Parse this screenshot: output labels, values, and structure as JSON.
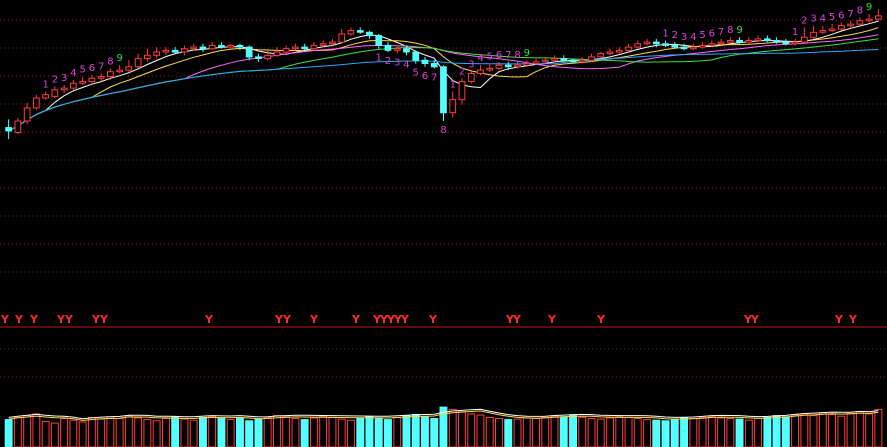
{
  "colors": {
    "background": "#000000",
    "up": "#ff3c3c",
    "down": "#54ffff",
    "grid": "#8a1a1a",
    "signal_line": "#c01818",
    "seq_label": "#e040e0",
    "seq_label_final": "#30e030",
    "y_marker": "#ff2a2a",
    "ma": [
      "#ffffff",
      "#ffd94a",
      "#ff66ff",
      "#3ce03c",
      "#2aa8ff"
    ]
  },
  "chart_data": {
    "type": "candlestick",
    "price_ylim": [
      0,
      100
    ],
    "volume_ylim": [
      0,
      100
    ],
    "grid": true,
    "series": [
      {
        "name": "",
        "kind": "ohlc",
        "ohlc": [
          [
            38,
            36,
            43,
            31
          ],
          [
            35,
            42,
            44,
            34
          ],
          [
            42,
            50,
            53,
            40
          ],
          [
            50,
            56,
            58,
            49
          ],
          [
            56,
            58,
            60,
            55
          ],
          [
            57,
            61,
            63,
            56
          ],
          [
            61,
            62,
            64,
            59
          ],
          [
            62,
            65,
            67,
            61
          ],
          [
            65,
            66,
            69,
            64
          ],
          [
            66,
            68,
            70,
            65
          ],
          [
            68,
            69,
            71,
            66
          ],
          [
            69,
            72,
            74,
            67
          ],
          [
            72,
            73,
            76,
            71
          ],
          [
            73,
            75,
            79,
            72
          ],
          [
            75,
            80,
            83,
            74
          ],
          [
            80,
            82,
            86,
            78
          ],
          [
            82,
            84,
            87,
            80
          ],
          [
            84,
            85,
            87,
            82
          ],
          [
            85,
            84,
            87,
            83
          ],
          [
            84,
            86,
            88,
            82
          ],
          [
            86,
            87,
            89,
            85
          ],
          [
            87,
            86,
            89,
            84
          ],
          [
            86,
            88,
            90,
            85
          ],
          [
            88,
            87,
            90,
            86
          ],
          [
            87,
            88,
            89,
            86
          ],
          [
            88,
            87,
            89,
            85
          ],
          [
            87,
            81,
            88,
            79
          ],
          [
            81,
            80,
            83,
            78
          ],
          [
            80,
            82,
            85,
            79
          ],
          [
            82,
            84,
            87,
            81
          ],
          [
            84,
            86,
            88,
            83
          ],
          [
            86,
            87,
            89,
            85
          ],
          [
            87,
            86,
            89,
            84
          ],
          [
            86,
            88,
            90,
            85
          ],
          [
            88,
            89,
            91,
            87
          ],
          [
            89,
            90,
            92,
            88
          ],
          [
            90,
            95,
            98,
            89
          ],
          [
            95,
            97,
            99,
            94
          ],
          [
            97,
            96,
            99,
            95
          ],
          [
            96,
            94,
            97,
            92
          ],
          [
            94,
            88,
            95,
            86
          ],
          [
            88,
            85,
            90,
            84
          ],
          [
            85,
            86,
            88,
            83
          ],
          [
            86,
            84,
            88,
            82
          ],
          [
            84,
            79,
            85,
            77
          ],
          [
            79,
            77,
            81,
            75
          ],
          [
            77,
            75,
            79,
            74
          ],
          [
            75,
            47,
            76,
            42
          ],
          [
            47,
            55,
            60,
            44
          ],
          [
            55,
            66,
            68,
            52
          ],
          [
            66,
            71,
            72,
            65
          ],
          [
            71,
            73,
            76,
            70
          ],
          [
            73,
            74,
            77,
            72
          ],
          [
            74,
            76,
            78,
            73
          ],
          [
            76,
            75,
            78,
            73
          ],
          [
            75,
            76,
            78,
            74
          ],
          [
            76,
            77,
            79,
            75
          ],
          [
            77,
            78,
            80,
            76
          ],
          [
            78,
            79,
            81,
            77
          ],
          [
            79,
            80,
            82,
            78
          ],
          [
            80,
            79,
            82,
            78
          ],
          [
            79,
            78,
            80,
            77
          ],
          [
            78,
            79,
            81,
            77
          ],
          [
            79,
            81,
            83,
            78
          ],
          [
            81,
            83,
            84,
            80
          ],
          [
            83,
            84,
            86,
            82
          ],
          [
            84,
            85,
            87,
            83
          ],
          [
            85,
            87,
            89,
            84
          ],
          [
            87,
            89,
            91,
            86
          ],
          [
            89,
            90,
            92,
            88
          ],
          [
            90,
            89,
            92,
            87
          ],
          [
            89,
            88,
            91,
            87
          ],
          [
            88,
            87,
            90,
            86
          ],
          [
            87,
            86,
            89,
            85
          ],
          [
            86,
            87,
            89,
            85
          ],
          [
            87,
            88,
            90,
            86
          ],
          [
            88,
            89,
            91,
            87
          ],
          [
            89,
            90,
            92,
            88
          ],
          [
            90,
            91,
            93,
            89
          ],
          [
            91,
            90,
            93,
            89
          ],
          [
            90,
            91,
            93,
            89
          ],
          [
            91,
            92,
            94,
            90
          ],
          [
            92,
            91,
            94,
            90
          ],
          [
            91,
            90,
            93,
            89
          ],
          [
            90,
            89,
            92,
            88
          ],
          [
            89,
            90,
            92,
            88
          ],
          [
            90,
            93,
            99,
            89
          ],
          [
            93,
            96,
            100,
            92
          ],
          [
            96,
            97,
            100,
            95
          ],
          [
            97,
            98,
            101,
            96
          ],
          [
            98,
            100,
            102,
            97
          ],
          [
            100,
            101,
            103,
            99
          ],
          [
            101,
            103,
            105,
            100
          ],
          [
            103,
            104,
            107,
            102
          ],
          [
            104,
            106,
            110,
            103
          ]
        ]
      },
      {
        "name": "",
        "kind": "volume",
        "values": [
          48,
          52,
          55,
          58,
          45,
          42,
          50,
          47,
          44,
          52,
          49,
          53,
          50,
          55,
          51,
          48,
          46,
          50,
          53,
          49,
          47,
          52,
          54,
          51,
          48,
          50,
          46,
          49,
          52,
          55,
          53,
          50,
          48,
          51,
          54,
          52,
          49,
          47,
          50,
          53,
          51,
          48,
          52,
          55,
          57,
          53,
          50,
          70,
          66,
          62,
          58,
          56,
          52,
          50,
          48,
          49,
          51,
          50,
          52,
          54,
          53,
          55,
          52,
          50,
          49,
          51,
          53,
          52,
          50,
          48,
          47,
          46,
          49,
          51,
          50,
          52,
          53,
          51,
          50,
          49,
          47,
          50,
          52,
          55,
          53,
          56,
          58,
          55,
          60,
          57,
          54,
          59,
          62,
          58,
          66
        ]
      }
    ],
    "annotations": {
      "td_sequences": [
        {
          "start": 4,
          "count": 9,
          "labels": [
            "1",
            "2",
            "3",
            "4",
            "5",
            "6",
            "7",
            "8",
            "9"
          ],
          "position": "above"
        },
        {
          "start": 40,
          "count": 8,
          "labels": [
            "1",
            "2",
            "3",
            "4",
            "5",
            "6",
            "7",
            "8"
          ],
          "position": "below"
        },
        {
          "start": 48,
          "count": 9,
          "labels": [
            "1",
            "2",
            "3",
            "4",
            "5",
            "6",
            "7",
            "8",
            "9"
          ],
          "position": "above"
        },
        {
          "start": 71,
          "count": 9,
          "labels": [
            "1",
            "2",
            "3",
            "4",
            "5",
            "6",
            "7",
            "8",
            "9"
          ],
          "position": "above"
        },
        {
          "start": 85,
          "count": 9,
          "labels": [
            "1",
            "2",
            "3",
            "4",
            "5",
            "6",
            "7",
            "8",
            "9"
          ],
          "position": "above"
        }
      ],
      "y_markers": [
        {
          "x": 5,
          "text": "Y"
        },
        {
          "x": 19,
          "text": "Y"
        },
        {
          "x": 34,
          "text": "Y"
        },
        {
          "x": 61,
          "text": "Y"
        },
        {
          "x": 69,
          "text": "Y"
        },
        {
          "x": 96,
          "text": "Y"
        },
        {
          "x": 104,
          "text": "Y"
        },
        {
          "x": 209,
          "text": "Y"
        },
        {
          "x": 279,
          "text": "Y"
        },
        {
          "x": 287,
          "text": "Y"
        },
        {
          "x": 314,
          "text": "Y"
        },
        {
          "x": 356,
          "text": "Y"
        },
        {
          "x": 377,
          "text": "Y"
        },
        {
          "x": 384,
          "text": "Y"
        },
        {
          "x": 391,
          "text": "Y"
        },
        {
          "x": 398,
          "text": "Y"
        },
        {
          "x": 405,
          "text": "Y"
        },
        {
          "x": 433,
          "text": "Y"
        },
        {
          "x": 510,
          "text": "Y"
        },
        {
          "x": 517,
          "text": "Y"
        },
        {
          "x": 552,
          "text": "Y"
        },
        {
          "x": 601,
          "text": "Y"
        },
        {
          "x": 748,
          "text": "Y"
        },
        {
          "x": 755,
          "text": "Y"
        },
        {
          "x": 839,
          "text": "Y"
        },
        {
          "x": 853,
          "text": "Y"
        }
      ]
    }
  }
}
